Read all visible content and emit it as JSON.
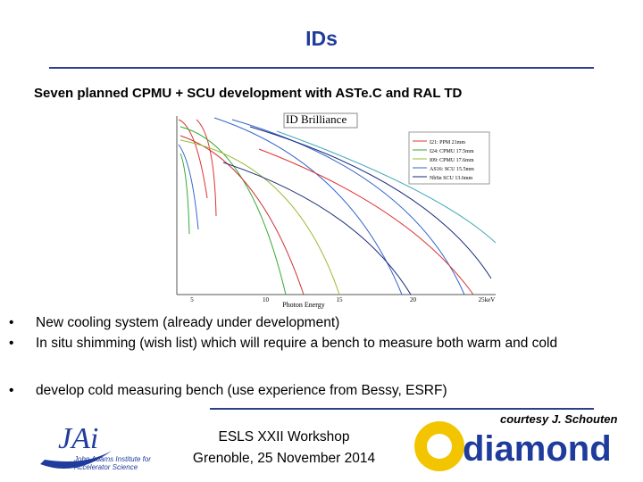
{
  "header": {
    "title": "IDs"
  },
  "subtitle": "Seven planned CPMU + SCU development with ASTe.C and RAL TD",
  "figure": {
    "title": "ID Brilliance",
    "x_label": "Photon Energy",
    "x_ticks": [
      "5",
      "10",
      "15",
      "20",
      "25keV"
    ],
    "legend": [
      "I21: PPM 21mm",
      "I24: CPMU 17.5mm",
      "I09: CPMU 17.6mm",
      "AS16: SCU 15.5mm",
      "NbSn SCU 13.6mm"
    ]
  },
  "bullets": [
    "New cooling system (already under development)",
    "In situ shimming (wish list) which will require a bench to measure both warm and cold",
    "develop cold measuring bench (use experience from Bessy, ESRF)"
  ],
  "footer": {
    "event": "ESLS XXII Workshop",
    "place_date": "Grenoble, 25 November 2014",
    "courtesy": "courtesy J. Schouten",
    "jai_logo": "JAi",
    "jai_name": "John Adams Institute for Accelerator Science",
    "diamond_logo": "diamond"
  }
}
